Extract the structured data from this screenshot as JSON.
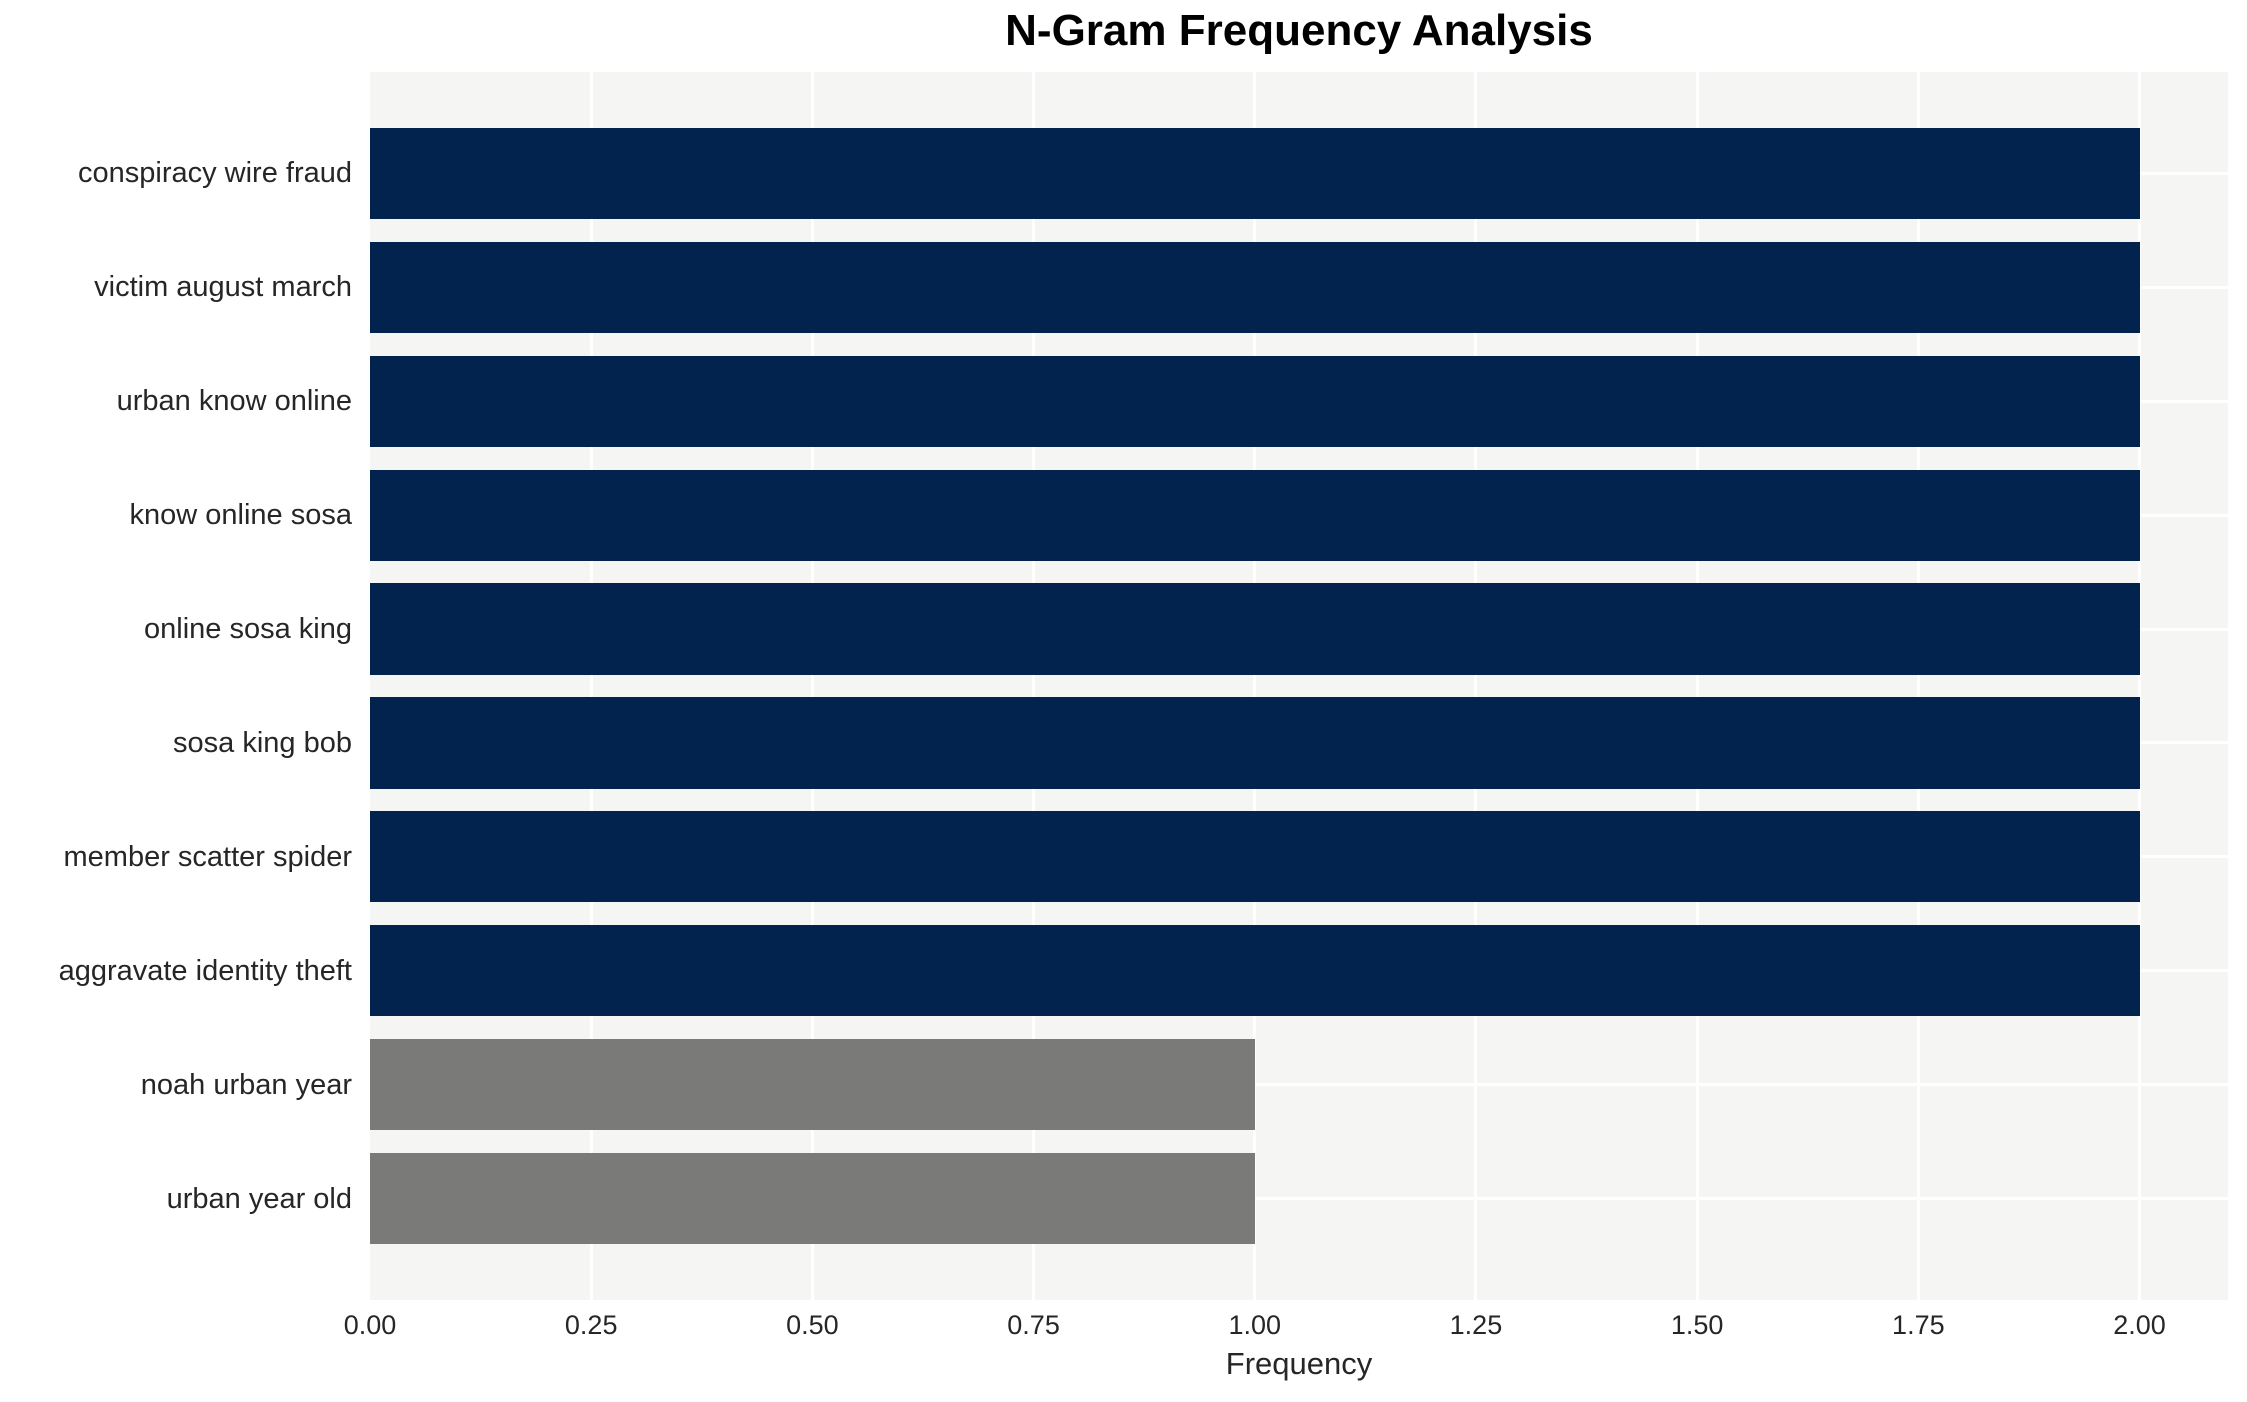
{
  "chart_data": {
    "type": "bar",
    "orientation": "horizontal",
    "title": "N-Gram Frequency Analysis",
    "xlabel": "Frequency",
    "ylabel": "",
    "categories": [
      "conspiracy wire fraud",
      "victim august march",
      "urban know online",
      "know online sosa",
      "online sosa king",
      "sosa king bob",
      "member scatter spider",
      "aggravate identity theft",
      "noah urban year",
      "urban year old"
    ],
    "values": [
      2,
      2,
      2,
      2,
      2,
      2,
      2,
      2,
      1,
      1
    ],
    "bar_colors": [
      "#02234d",
      "#02234d",
      "#02234d",
      "#02234d",
      "#02234d",
      "#02234d",
      "#02234d",
      "#02234d",
      "#7a7b78",
      "#7a7b78"
    ],
    "xlim": [
      0,
      2.1
    ],
    "xticks": [
      {
        "value": 0.0,
        "label": "0.00"
      },
      {
        "value": 0.25,
        "label": "0.25"
      },
      {
        "value": 0.5,
        "label": "0.50"
      },
      {
        "value": 0.75,
        "label": "0.75"
      },
      {
        "value": 1.0,
        "label": "1.00"
      },
      {
        "value": 1.25,
        "label": "1.25"
      },
      {
        "value": 1.5,
        "label": "1.50"
      },
      {
        "value": 1.75,
        "label": "1.75"
      },
      {
        "value": 2.0,
        "label": "2.00"
      }
    ],
    "grid": true,
    "legend": false
  },
  "colors": {
    "bar_high_frequency": "#02234d",
    "bar_low_frequency": "#7a7b78",
    "plot_background": "#f5f5f4",
    "gridline": "#ffffff",
    "figure_background": "#ffffff",
    "title_text": "#000000",
    "axis_text": "#262626"
  }
}
